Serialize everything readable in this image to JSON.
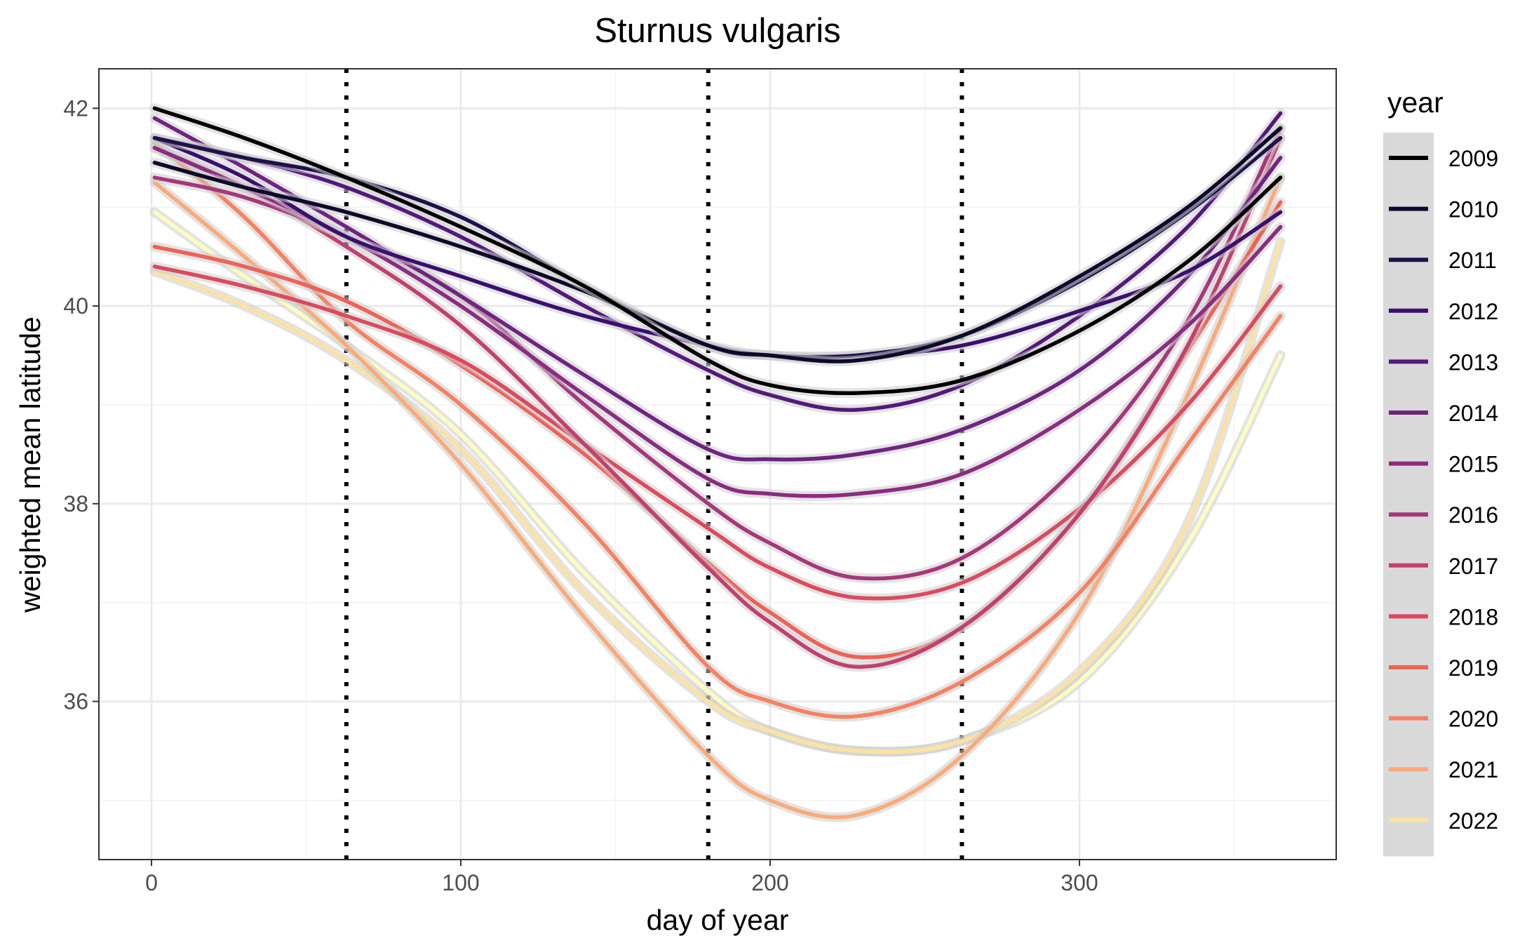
{
  "chart_data": {
    "type": "line",
    "title": "Sturnus vulgaris",
    "xlabel": "day of year",
    "ylabel": "weighted mean latitude",
    "xlim": [
      -17,
      383
    ],
    "ylim": [
      34.4,
      42.4
    ],
    "x_ticks": [
      0,
      100,
      200,
      300
    ],
    "y_ticks": [
      36,
      38,
      40,
      42
    ],
    "grid": true,
    "legend": {
      "title": "year",
      "placement": "right"
    },
    "vlines": [
      63,
      180,
      262
    ],
    "x": [
      1,
      30,
      63,
      100,
      140,
      180,
      200,
      228,
      262,
      300,
      335,
      365
    ],
    "series": [
      {
        "name": "2009",
        "color": "#000000",
        "values": [
          42.0,
          41.7,
          41.3,
          40.8,
          40.2,
          39.45,
          39.2,
          39.12,
          39.25,
          39.75,
          40.45,
          41.3
        ]
      },
      {
        "name": "2010",
        "color": "#0d0a29",
        "values": [
          41.45,
          41.2,
          40.95,
          40.6,
          40.15,
          39.6,
          39.5,
          39.45,
          39.7,
          40.3,
          41.0,
          41.8
        ]
      },
      {
        "name": "2011",
        "color": "#1f1149",
        "values": [
          41.7,
          41.5,
          41.3,
          40.9,
          40.2,
          39.6,
          39.5,
          39.5,
          39.7,
          40.25,
          40.95,
          41.7
        ]
      },
      {
        "name": "2012",
        "color": "#3a0f6e",
        "values": [
          41.7,
          41.3,
          40.7,
          40.3,
          39.9,
          39.6,
          39.5,
          39.5,
          39.6,
          39.95,
          40.35,
          40.95
        ]
      },
      {
        "name": "2013",
        "color": "#531a7a",
        "values": [
          41.7,
          41.5,
          41.2,
          40.7,
          40.0,
          39.35,
          39.1,
          38.95,
          39.2,
          39.9,
          40.8,
          41.95
        ]
      },
      {
        "name": "2014",
        "color": "#6f2481",
        "values": [
          41.9,
          41.4,
          40.8,
          40.1,
          39.3,
          38.55,
          38.45,
          38.5,
          38.75,
          39.35,
          40.3,
          41.5
        ]
      },
      {
        "name": "2015",
        "color": "#8a2c81",
        "values": [
          41.6,
          41.2,
          40.7,
          40.0,
          39.1,
          38.25,
          38.1,
          38.1,
          38.3,
          38.95,
          39.8,
          40.8
        ]
      },
      {
        "name": "2016",
        "color": "#a6377b",
        "values": [
          41.3,
          41.1,
          40.7,
          40.1,
          39.0,
          38.0,
          37.6,
          37.25,
          37.45,
          38.4,
          39.85,
          41.8
        ]
      },
      {
        "name": "2017",
        "color": "#c2406e",
        "values": [
          41.6,
          41.2,
          40.6,
          39.8,
          38.6,
          37.35,
          36.8,
          36.35,
          36.75,
          37.9,
          39.6,
          41.7
        ]
      },
      {
        "name": "2018",
        "color": "#dc4a5e",
        "values": [
          40.4,
          40.2,
          39.9,
          39.45,
          38.6,
          37.75,
          37.35,
          37.05,
          37.2,
          37.95,
          39.0,
          40.2
        ]
      },
      {
        "name": "2019",
        "color": "#ee6257",
        "values": [
          40.6,
          40.4,
          40.05,
          39.4,
          38.5,
          37.4,
          36.9,
          36.45,
          36.75,
          37.9,
          39.55,
          41.05
        ]
      },
      {
        "name": "2020",
        "color": "#f8815f",
        "values": [
          41.65,
          40.9,
          39.85,
          39.0,
          37.8,
          36.35,
          36.0,
          35.85,
          36.2,
          37.1,
          38.6,
          39.9
        ]
      },
      {
        "name": "2021",
        "color": "#fcaa77",
        "values": [
          41.25,
          40.5,
          39.6,
          38.4,
          36.85,
          35.45,
          35.0,
          34.85,
          35.45,
          36.9,
          39.1,
          41.3
        ]
      },
      {
        "name": "2022",
        "color": "#fde2a0",
        "values": [
          40.35,
          40.0,
          39.45,
          38.55,
          37.1,
          36.0,
          35.7,
          35.5,
          35.6,
          36.3,
          37.8,
          40.65
        ]
      },
      {
        "name": "",
        "color": "#fcfdbf",
        "values": [
          40.95,
          40.3,
          39.6,
          38.7,
          37.3,
          36.1,
          35.7,
          35.5,
          35.6,
          36.2,
          37.6,
          39.5
        ]
      }
    ],
    "legend_entries": [
      "2009",
      "2010",
      "2011",
      "2012",
      "2013",
      "2014",
      "2015",
      "2016",
      "2017",
      "2018",
      "2019",
      "2020",
      "2021",
      "2022"
    ]
  }
}
